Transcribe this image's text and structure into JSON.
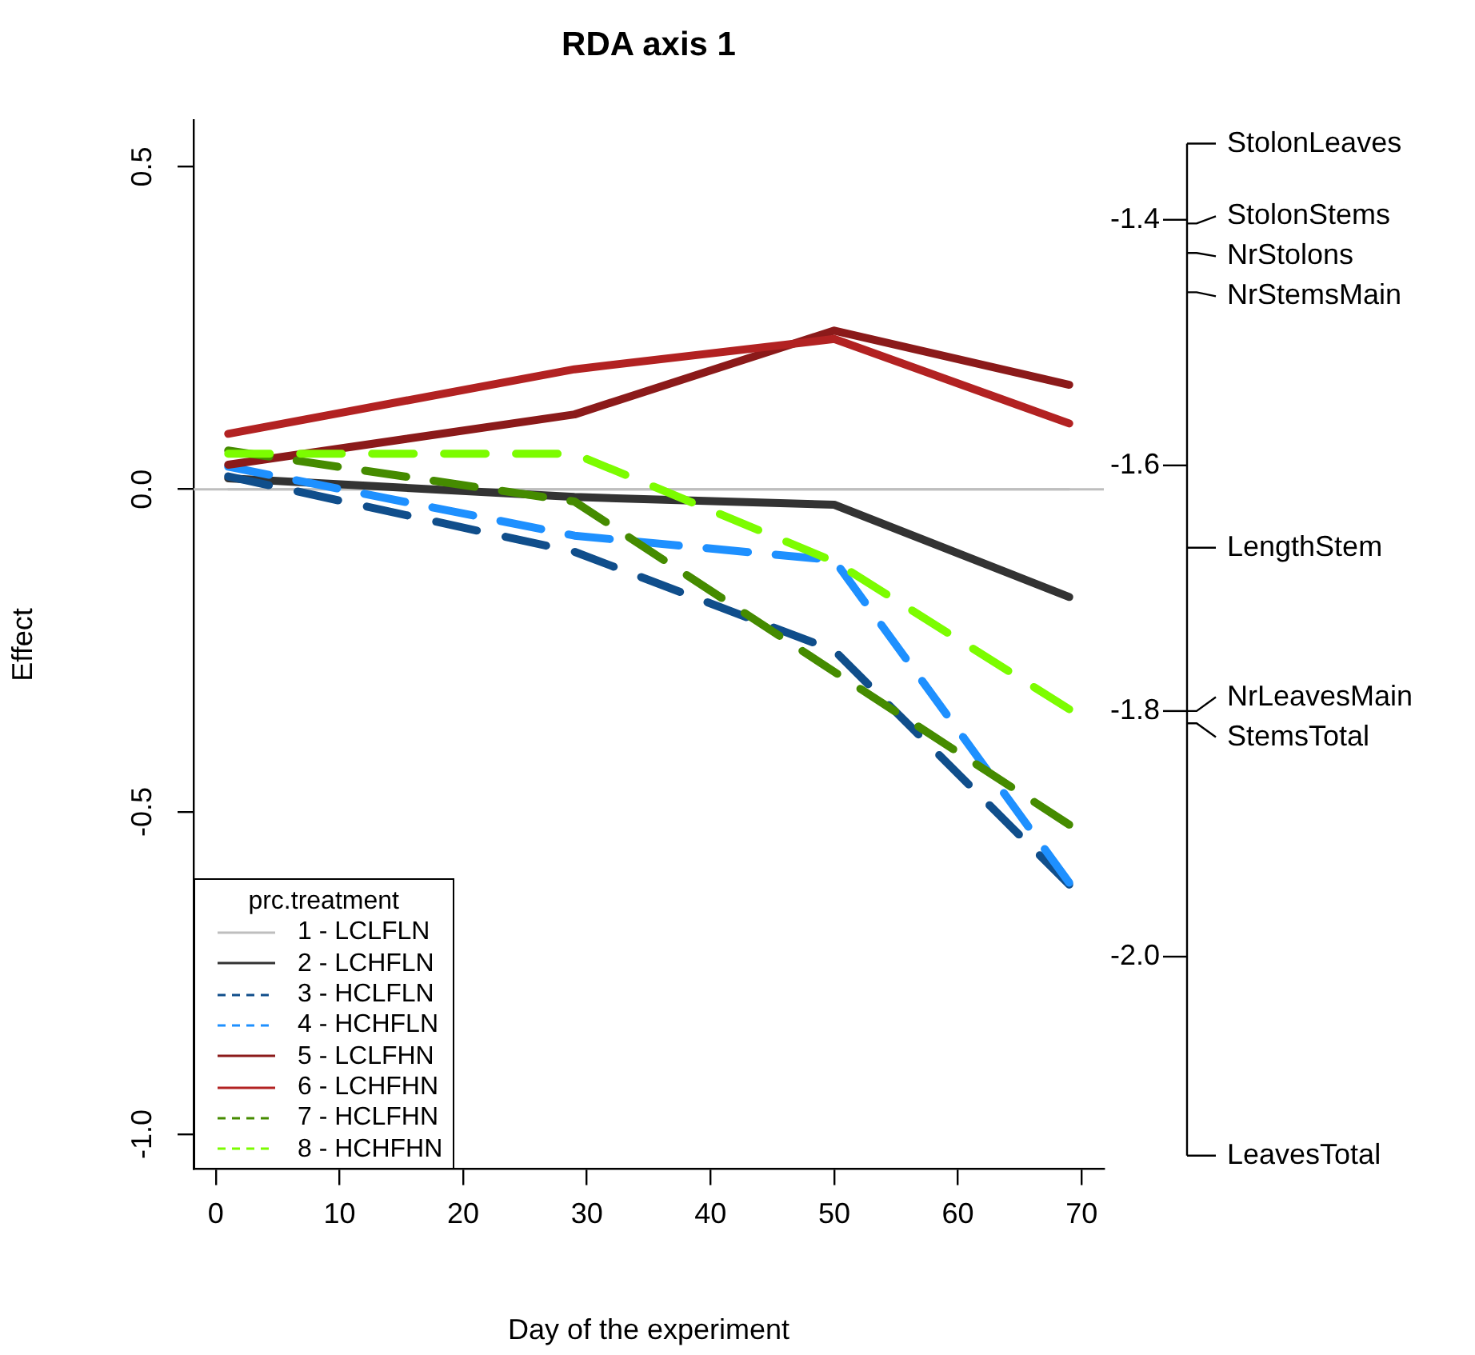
{
  "chart_data": {
    "type": "line",
    "title": "RDA axis 1",
    "xlabel": "Day of the experiment",
    "ylabel": "Effect",
    "legend_title": "prc.treatment",
    "legend": "bottom left",
    "grid": false,
    "marker": "none",
    "x": [
      1,
      29,
      50,
      69
    ],
    "xlim": [
      -1.8,
      71.8
    ],
    "xticks": [
      0,
      10,
      20,
      30,
      40,
      50,
      60,
      70
    ],
    "ylim": [
      -1.054,
      0.572
    ],
    "yticks": [
      {
        "value": -1,
        "label": "-1.0"
      },
      -0.5,
      {
        "value": 0,
        "label": "0.0"
      },
      0.5
    ],
    "y2lim": [
      -2.173,
      -1.319
    ],
    "y2ticks": [
      {
        "value": -2,
        "label": "-2.0"
      },
      -1.8,
      -1.6,
      -1.4
    ],
    "ref_lines": [
      {
        "axis": "y",
        "value": 0,
        "color": "#bebebe"
      },
      {
        "axis": "y2",
        "value": -1.338,
        "label": "StolonLeaves",
        "color": "#000000"
      },
      {
        "axis": "y2",
        "value": -1.403,
        "label": "StolonStems",
        "color": "#000000"
      },
      {
        "axis": "y2",
        "value": -1.427,
        "label": "NrStolons",
        "color": "#000000"
      },
      {
        "axis": "y2",
        "value": -1.459,
        "label": "NrStemsMain",
        "color": "#000000"
      },
      {
        "axis": "y2",
        "value": -1.667,
        "label": "LengthStem",
        "color": "#000000"
      },
      {
        "axis": "y2",
        "value": -1.8,
        "label": "NrLeavesMain",
        "color": "#000000"
      },
      {
        "axis": "y2",
        "value": -1.81,
        "label": "StemsTotal",
        "color": "#000000"
      },
      {
        "axis": "y2",
        "value": -2.162,
        "label": "LeavesTotal",
        "color": "#000000"
      }
    ],
    "series": [
      {
        "name": "1 - LCLFLN",
        "color": "#bebebe",
        "line_style": "solid",
        "values": [
          0,
          0,
          0,
          0
        ]
      },
      {
        "name": "2 - LCHFLN",
        "color": "#333333",
        "line_style": "solid",
        "values": [
          0.017,
          -0.012,
          -0.024,
          -0.167
        ]
      },
      {
        "name": "3 - HCLFLN",
        "color": "#104e8b",
        "line_style": "dashed",
        "values": [
          0.02,
          -0.097,
          -0.25,
          -0.613
        ]
      },
      {
        "name": "4 - HCHFLN",
        "color": "#1e90ff",
        "line_style": "dashed",
        "values": [
          0.035,
          -0.072,
          -0.11,
          -0.61
        ]
      },
      {
        "name": "5 - LCLFHN",
        "color": "#8b1a1a",
        "line_style": "solid",
        "values": [
          0.038,
          0.116,
          0.246,
          0.162
        ]
      },
      {
        "name": "6 - LCHFHN",
        "color": "#b22222",
        "line_style": "solid",
        "values": [
          0.086,
          0.186,
          0.233,
          0.102
        ]
      },
      {
        "name": "7 - HCLFHN",
        "color": "#458b00",
        "line_style": "dashed",
        "values": [
          0.06,
          -0.019,
          -0.283,
          -0.52
        ]
      },
      {
        "name": "8 - HCHFHN",
        "color": "#7cfc00",
        "line_style": "dashed",
        "values": [
          0.055,
          0.055,
          -0.112,
          -0.341
        ]
      }
    ]
  }
}
